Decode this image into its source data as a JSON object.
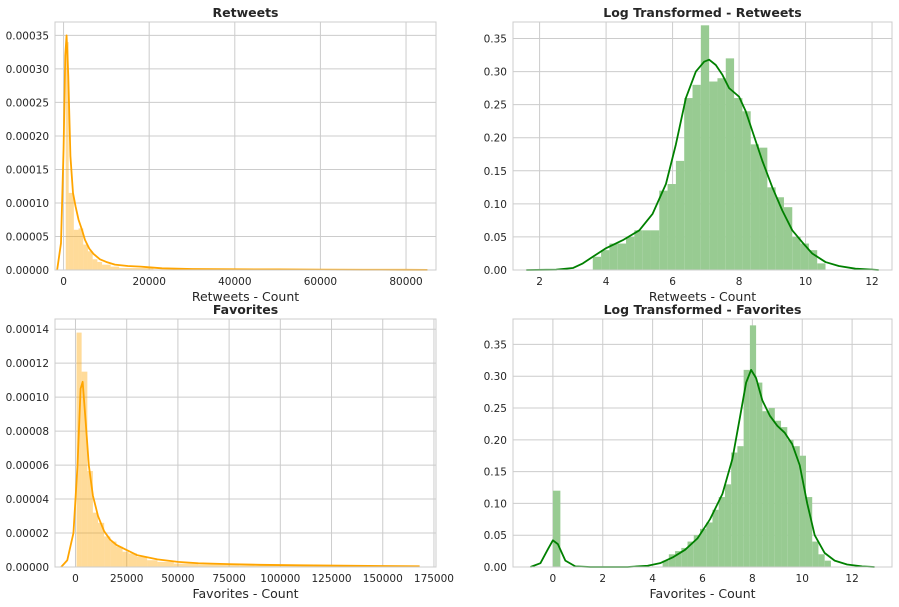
{
  "figure": {
    "background": "#ffffff",
    "grid": true
  },
  "chart_data": [
    {
      "type": "histogram-kde",
      "title": "Retweets",
      "xlabel": "Retweets - Count",
      "ylabel": "",
      "color": "#ffa500",
      "xlim": [
        -2000,
        87000
      ],
      "ylim": [
        0,
        0.00037
      ],
      "xticks": [
        0,
        20000,
        40000,
        60000,
        80000
      ],
      "xtick_labels": [
        "0",
        "20000",
        "40000",
        "60000",
        "80000"
      ],
      "yticks": [
        0,
        5e-05,
        0.0001,
        0.00015,
        0.0002,
        0.00025,
        0.0003,
        0.00035
      ],
      "ytick_labels": [
        "0.00000",
        "0.00005",
        "0.00010",
        "0.00015",
        "0.00020",
        "0.00025",
        "0.00030",
        "0.00035"
      ],
      "bins": [
        [
          500,
          1200,
          0.00034
        ],
        [
          1200,
          2400,
          0.000115
        ],
        [
          2400,
          3500,
          6e-05
        ],
        [
          3500,
          4600,
          6.2e-05
        ],
        [
          4600,
          5700,
          3.8e-05
        ],
        [
          5700,
          6800,
          2.8e-05
        ],
        [
          6800,
          7900,
          1.6e-05
        ],
        [
          7900,
          9000,
          1.2e-05
        ],
        [
          9000,
          11000,
          8e-06
        ],
        [
          11000,
          13000,
          5e-06
        ],
        [
          13000,
          16000,
          3e-06
        ],
        [
          16000,
          21000,
          3e-06
        ],
        [
          21000,
          30000,
          1e-06
        ],
        [
          30000,
          50000,
          6e-07
        ],
        [
          50000,
          84000,
          3e-07
        ]
      ],
      "kde": [
        [
          -1500,
          0
        ],
        [
          -600,
          4e-05
        ],
        [
          0,
          0.00018
        ],
        [
          400,
          0.00032
        ],
        [
          700,
          0.00035
        ],
        [
          1100,
          0.00029
        ],
        [
          1600,
          0.00017
        ],
        [
          2200,
          0.000115
        ],
        [
          2800,
          9.5e-05
        ],
        [
          3500,
          7.5e-05
        ],
        [
          4300,
          6e-05
        ],
        [
          5000,
          4.5e-05
        ],
        [
          6000,
          3.2e-05
        ],
        [
          7000,
          2.4e-05
        ],
        [
          8500,
          1.6e-05
        ],
        [
          10000,
          1.2e-05
        ],
        [
          12000,
          8e-06
        ],
        [
          15000,
          6e-06
        ],
        [
          18000,
          5e-06
        ],
        [
          20000,
          4e-06
        ],
        [
          23000,
          2.5e-06
        ],
        [
          30000,
          1.5e-06
        ],
        [
          40000,
          1e-06
        ],
        [
          50000,
          8e-07
        ],
        [
          60000,
          5e-07
        ],
        [
          70000,
          4e-07
        ],
        [
          80000,
          3e-07
        ],
        [
          85000,
          2e-07
        ]
      ]
    },
    {
      "type": "histogram-kde",
      "title": "Log Transformed - Retweets",
      "xlabel": "Retweets - Count",
      "ylabel": "",
      "color": "#008000",
      "bar_color": "#98cb92",
      "xlim": [
        1.2,
        12.6
      ],
      "ylim": [
        0,
        0.375
      ],
      "xticks": [
        2,
        4,
        6,
        8,
        10,
        12
      ],
      "xtick_labels": [
        "2",
        "4",
        "6",
        "8",
        "10",
        "12"
      ],
      "yticks": [
        0,
        0.05,
        0.1,
        0.15,
        0.2,
        0.25,
        0.3,
        0.35
      ],
      "ytick_labels": [
        "0.00",
        "0.05",
        "0.10",
        "0.15",
        "0.20",
        "0.25",
        "0.30",
        "0.35"
      ],
      "bins": [
        [
          3.6,
          3.85,
          0.02
        ],
        [
          3.85,
          4.1,
          0.03
        ],
        [
          4.1,
          4.35,
          0.04
        ],
        [
          4.35,
          4.6,
          0.04
        ],
        [
          4.6,
          4.85,
          0.05
        ],
        [
          4.85,
          5.1,
          0.06
        ],
        [
          5.1,
          5.35,
          0.06
        ],
        [
          5.35,
          5.6,
          0.06
        ],
        [
          5.6,
          5.85,
          0.12
        ],
        [
          5.85,
          6.1,
          0.13
        ],
        [
          6.1,
          6.35,
          0.165
        ],
        [
          6.35,
          6.6,
          0.26
        ],
        [
          6.6,
          6.85,
          0.28
        ],
        [
          6.85,
          7.1,
          0.37
        ],
        [
          7.1,
          7.35,
          0.285
        ],
        [
          7.35,
          7.6,
          0.29
        ],
        [
          7.6,
          7.85,
          0.32
        ],
        [
          7.85,
          8.1,
          0.26
        ],
        [
          8.1,
          8.35,
          0.24
        ],
        [
          8.35,
          8.6,
          0.19
        ],
        [
          8.6,
          8.85,
          0.185
        ],
        [
          8.85,
          9.1,
          0.125
        ],
        [
          9.1,
          9.35,
          0.11
        ],
        [
          9.35,
          9.6,
          0.095
        ],
        [
          9.6,
          9.85,
          0.05
        ],
        [
          9.85,
          10.1,
          0.04
        ],
        [
          10.1,
          10.35,
          0.03
        ],
        [
          10.35,
          10.6,
          0.01
        ]
      ],
      "kde": [
        [
          1.6,
          0
        ],
        [
          2.5,
          0.0005
        ],
        [
          3.0,
          0.003
        ],
        [
          3.3,
          0.01
        ],
        [
          3.6,
          0.02
        ],
        [
          4.0,
          0.033
        ],
        [
          4.5,
          0.045
        ],
        [
          5.0,
          0.06
        ],
        [
          5.4,
          0.085
        ],
        [
          5.8,
          0.13
        ],
        [
          6.1,
          0.19
        ],
        [
          6.4,
          0.26
        ],
        [
          6.7,
          0.3
        ],
        [
          6.95,
          0.315
        ],
        [
          7.1,
          0.318
        ],
        [
          7.3,
          0.31
        ],
        [
          7.5,
          0.295
        ],
        [
          7.7,
          0.275
        ],
        [
          8.0,
          0.262
        ],
        [
          8.2,
          0.24
        ],
        [
          8.4,
          0.21
        ],
        [
          8.7,
          0.165
        ],
        [
          9.0,
          0.125
        ],
        [
          9.3,
          0.09
        ],
        [
          9.6,
          0.06
        ],
        [
          9.9,
          0.042
        ],
        [
          10.2,
          0.025
        ],
        [
          10.6,
          0.012
        ],
        [
          11.0,
          0.006
        ],
        [
          11.5,
          0.002
        ],
        [
          12.2,
          0
        ]
      ]
    },
    {
      "type": "histogram-kde",
      "title": "Favorites",
      "xlabel": "Favorites - Count",
      "ylabel": "",
      "color": "#ffa500",
      "xlim": [
        -10000,
        176000
      ],
      "ylim": [
        0,
        0.000146
      ],
      "xticks": [
        0,
        25000,
        50000,
        75000,
        100000,
        125000,
        150000,
        175000
      ],
      "xtick_labels": [
        "0",
        "25000",
        "50000",
        "75000",
        "100000",
        "125000",
        "150000",
        "175000"
      ],
      "yticks": [
        0,
        2e-05,
        4e-05,
        6e-05,
        8e-05,
        0.0001,
        0.00012,
        0.00014
      ],
      "ytick_labels": [
        "0.00000",
        "0.00002",
        "0.00004",
        "0.00006",
        "0.00008",
        "0.00010",
        "0.00012",
        "0.00014"
      ],
      "bins": [
        [
          500,
          3000,
          0.000138
        ],
        [
          3000,
          5800,
          0.000115
        ],
        [
          5800,
          8500,
          5.65e-05
        ],
        [
          8500,
          11000,
          3.2e-05
        ],
        [
          11000,
          14000,
          2.6e-05
        ],
        [
          14000,
          17000,
          1.8e-05
        ],
        [
          17000,
          20000,
          1.5e-05
        ],
        [
          20000,
          23000,
          1.2e-05
        ],
        [
          23000,
          26000,
          9e-06
        ],
        [
          26000,
          30000,
          8e-06
        ],
        [
          30000,
          35000,
          6e-06
        ],
        [
          35000,
          40000,
          4e-06
        ],
        [
          40000,
          48000,
          3e-06
        ],
        [
          48000,
          60000,
          2e-06
        ],
        [
          60000,
          80000,
          1.5e-06
        ],
        [
          80000,
          110000,
          1e-06
        ],
        [
          110000,
          140000,
          8e-07
        ],
        [
          140000,
          168000,
          5e-07
        ]
      ],
      "kde": [
        [
          -7000,
          0
        ],
        [
          -4000,
          4e-06
        ],
        [
          -1000,
          2e-05
        ],
        [
          1000,
          6e-05
        ],
        [
          2500,
          0.000105
        ],
        [
          3500,
          0.000109
        ],
        [
          5000,
          8.5e-05
        ],
        [
          6500,
          6e-05
        ],
        [
          8500,
          4.2e-05
        ],
        [
          11000,
          3e-05
        ],
        [
          14000,
          2.1e-05
        ],
        [
          17000,
          1.6e-05
        ],
        [
          20000,
          1.3e-05
        ],
        [
          25000,
          1e-05
        ],
        [
          30000,
          7e-06
        ],
        [
          40000,
          4.5e-06
        ],
        [
          50000,
          3e-06
        ],
        [
          60000,
          2.2e-06
        ],
        [
          75000,
          1.7e-06
        ],
        [
          90000,
          1.3e-06
        ],
        [
          110000,
          1e-06
        ],
        [
          130000,
          8e-07
        ],
        [
          150000,
          6e-07
        ],
        [
          168000,
          4e-07
        ]
      ]
    },
    {
      "type": "histogram-kde",
      "title": "Log Transformed - Favorites",
      "xlabel": "Favorites - Count",
      "ylabel": "",
      "color": "#008000",
      "bar_color": "#98cb92",
      "xlim": [
        -1.6,
        13.6
      ],
      "ylim": [
        0,
        0.39
      ],
      "xticks": [
        0,
        2,
        4,
        6,
        8,
        10,
        12
      ],
      "xtick_labels": [
        "0",
        "2",
        "4",
        "6",
        "8",
        "10",
        "12"
      ],
      "yticks": [
        0,
        0.05,
        0.1,
        0.15,
        0.2,
        0.25,
        0.3,
        0.35
      ],
      "ytick_labels": [
        "0.00",
        "0.05",
        "0.10",
        "0.15",
        "0.20",
        "0.25",
        "0.30",
        "0.35"
      ],
      "bins": [
        [
          0.0,
          0.3,
          0.12
        ],
        [
          4.4,
          4.65,
          0.01
        ],
        [
          4.65,
          4.9,
          0.02
        ],
        [
          4.9,
          5.15,
          0.025
        ],
        [
          5.15,
          5.4,
          0.03
        ],
        [
          5.4,
          5.65,
          0.04
        ],
        [
          5.65,
          5.9,
          0.05
        ],
        [
          5.9,
          6.15,
          0.06
        ],
        [
          6.15,
          6.4,
          0.07
        ],
        [
          6.4,
          6.65,
          0.09
        ],
        [
          6.65,
          6.9,
          0.11
        ],
        [
          6.9,
          7.15,
          0.13
        ],
        [
          7.15,
          7.4,
          0.18
        ],
        [
          7.4,
          7.65,
          0.19
        ],
        [
          7.65,
          7.9,
          0.31
        ],
        [
          7.9,
          8.15,
          0.38
        ],
        [
          8.15,
          8.4,
          0.29
        ],
        [
          8.4,
          8.65,
          0.245
        ],
        [
          8.65,
          8.9,
          0.25
        ],
        [
          8.9,
          9.15,
          0.23
        ],
        [
          9.15,
          9.4,
          0.22
        ],
        [
          9.4,
          9.65,
          0.2
        ],
        [
          9.65,
          9.9,
          0.19
        ],
        [
          9.9,
          10.15,
          0.175
        ],
        [
          10.15,
          10.4,
          0.11
        ],
        [
          10.4,
          10.65,
          0.04
        ],
        [
          10.65,
          10.9,
          0.02
        ],
        [
          10.9,
          11.15,
          0.01
        ]
      ],
      "kde": [
        [
          -0.9,
          0
        ],
        [
          -0.5,
          0.006
        ],
        [
          -0.2,
          0.028
        ],
        [
          0.0,
          0.042
        ],
        [
          0.2,
          0.036
        ],
        [
          0.5,
          0.01
        ],
        [
          0.9,
          0.001
        ],
        [
          1.5,
          0
        ],
        [
          3.0,
          0
        ],
        [
          3.8,
          0.002
        ],
        [
          4.3,
          0.006
        ],
        [
          4.8,
          0.015
        ],
        [
          5.3,
          0.027
        ],
        [
          5.8,
          0.045
        ],
        [
          6.3,
          0.075
        ],
        [
          6.8,
          0.115
        ],
        [
          7.2,
          0.17
        ],
        [
          7.5,
          0.235
        ],
        [
          7.75,
          0.29
        ],
        [
          7.95,
          0.31
        ],
        [
          8.15,
          0.297
        ],
        [
          8.4,
          0.262
        ],
        [
          8.7,
          0.238
        ],
        [
          9.0,
          0.222
        ],
        [
          9.3,
          0.211
        ],
        [
          9.6,
          0.193
        ],
        [
          9.9,
          0.16
        ],
        [
          10.2,
          0.1
        ],
        [
          10.5,
          0.05
        ],
        [
          10.9,
          0.022
        ],
        [
          11.3,
          0.01
        ],
        [
          11.8,
          0.004
        ],
        [
          12.4,
          0.001
        ],
        [
          12.9,
          0
        ]
      ]
    }
  ]
}
